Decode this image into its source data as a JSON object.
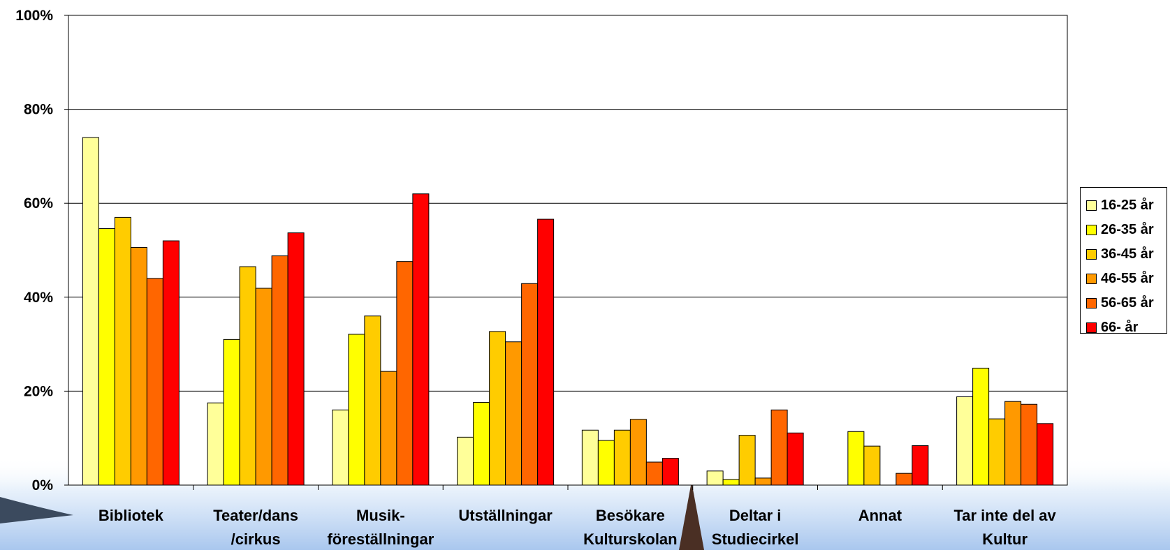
{
  "chart_data": {
    "type": "bar",
    "categories": [
      [
        "Bibliotek"
      ],
      [
        "Teater/dans",
        "/cirkus"
      ],
      [
        "Musik-",
        "föreställningar"
      ],
      [
        "Utställningar"
      ],
      [
        "Besökare",
        "Kulturskolan"
      ],
      [
        "Deltar i",
        "Studiecirkel"
      ],
      [
        "Annat"
      ],
      [
        "Tar inte del av",
        "Kultur"
      ]
    ],
    "series": [
      {
        "name": "16-25 år",
        "color": "#ffff99",
        "values": [
          74,
          17.5,
          16,
          10.2,
          11.7,
          3,
          0,
          18.8
        ]
      },
      {
        "name": "26-35 år",
        "color": "#ffff00",
        "values": [
          54.6,
          31,
          32.1,
          17.6,
          9.5,
          1.2,
          11.4,
          24.9
        ]
      },
      {
        "name": "36-45 år",
        "color": "#ffcc00",
        "values": [
          57,
          46.5,
          36,
          32.7,
          11.7,
          10.6,
          8.3,
          14.1
        ]
      },
      {
        "name": "46-55 år",
        "color": "#ff9900",
        "values": [
          50.6,
          41.9,
          24.2,
          30.5,
          14,
          1.5,
          0,
          17.8
        ]
      },
      {
        "name": "56-65 år",
        "color": "#ff6600",
        "values": [
          44,
          48.8,
          47.6,
          42.9,
          4.9,
          16,
          2.5,
          17.2
        ]
      },
      {
        "name": "66- år",
        "color": "#ff0000",
        "values": [
          52,
          53.7,
          62,
          56.6,
          5.7,
          11.1,
          8.4,
          13.1
        ]
      }
    ],
    "ylim": [
      0,
      100
    ],
    "yticks": [
      "0%",
      "20%",
      "40%",
      "60%",
      "80%",
      "100%"
    ],
    "grid": true,
    "legend_position": "right"
  }
}
